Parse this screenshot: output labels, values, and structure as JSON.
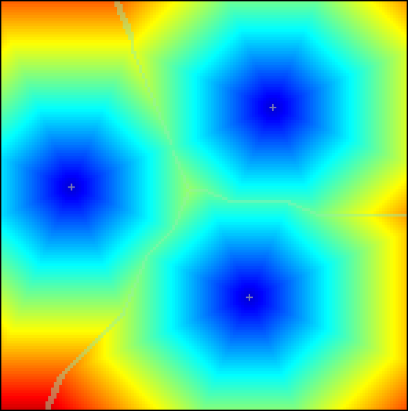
{
  "diagram": {
    "kind": "voronoi-distance-field",
    "colormap": "jet",
    "cells": 3,
    "sites": [
      {
        "id": "site-left",
        "u": 0.173,
        "v": 0.455
      },
      {
        "id": "site-top-right",
        "u": 0.67,
        "v": 0.26
      },
      {
        "id": "site-bottom",
        "u": 0.612,
        "v": 0.725
      }
    ],
    "distance_metric": "octagonal",
    "max_distance": 0.62,
    "colors": {
      "border": "#000000",
      "boundary_line": "#8ff0b0",
      "site_marker": "#7a7ab8"
    }
  }
}
